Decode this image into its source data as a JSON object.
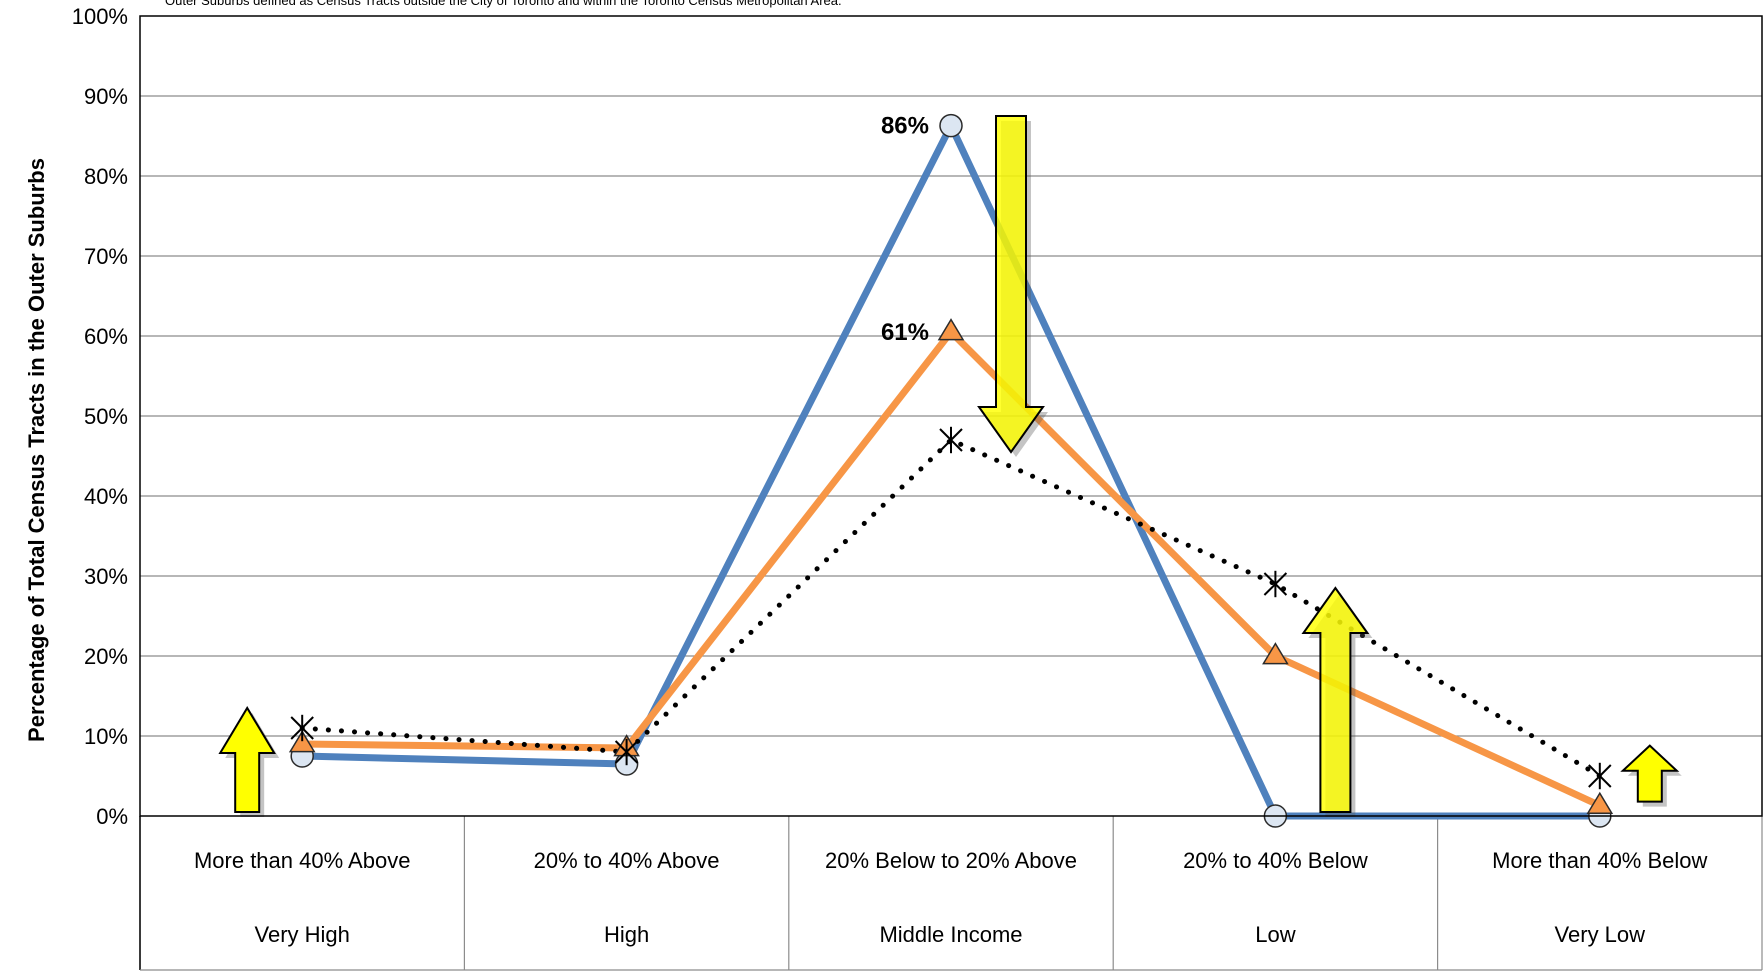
{
  "note": "Outer Suburbs defined as Census Tracts outside the City of Toronto and within the Toronto Census Metropolitan Area.",
  "chart_data": {
    "type": "line",
    "ylabel": "Percentage of Total Census Tracts in the Outer Suburbs",
    "ylim": [
      0,
      100
    ],
    "y_ticks": [
      "0%",
      "10%",
      "20%",
      "30%",
      "40%",
      "50%",
      "60%",
      "70%",
      "80%",
      "90%",
      "100%"
    ],
    "grid": "horizontal",
    "categories": [
      "More than 40% Above",
      "20% to 40% Above",
      "20% Below to 20% Above",
      "20% to 40% Below",
      "More than 40% Below"
    ],
    "category_groups": [
      "Very High",
      "High",
      "Middle Income",
      "Low",
      "Very Low"
    ],
    "series": [
      {
        "values": [
          7.5,
          6.5,
          86.3,
          0,
          0
        ],
        "color": "#4f81bd",
        "marker": "circle",
        "style": "solid"
      },
      {
        "values": [
          9,
          8.5,
          60.5,
          20,
          1.3
        ],
        "color": "#f79646",
        "marker": "triangle",
        "style": "solid"
      },
      {
        "values": [
          11,
          8,
          47,
          29,
          5
        ],
        "color": "#000000",
        "marker": "asterisk",
        "style": "dotted"
      }
    ],
    "data_labels": [
      {
        "series": 0,
        "index": 2,
        "text": "86%"
      },
      {
        "series": 1,
        "index": 2,
        "text": "61%"
      }
    ],
    "arrows": [
      {
        "category_index": 0,
        "direction": "up",
        "from": 0.5,
        "to": 13.5
      },
      {
        "category_index": 2,
        "direction": "down",
        "from": 87.5,
        "to": 45.5
      },
      {
        "category_index": 3,
        "direction": "up",
        "from": 0.5,
        "to": 28.5
      },
      {
        "category_index": 4,
        "direction": "up",
        "from": 1.8,
        "to": 8.8
      }
    ],
    "arrow_color": "#ffff00"
  }
}
